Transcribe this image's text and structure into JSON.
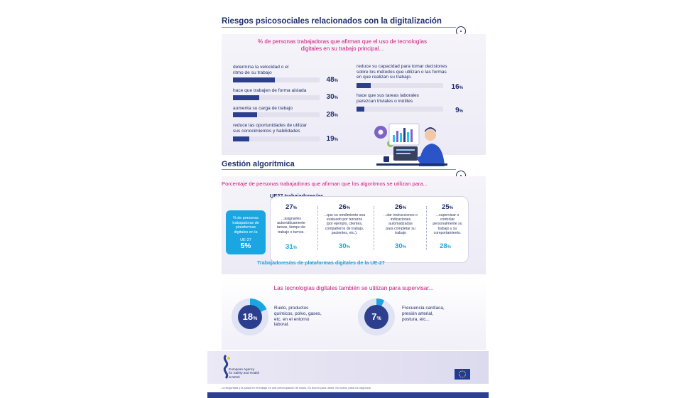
{
  "colors": {
    "navy": "#1f2f6b",
    "bar": "#2b3f8e",
    "accent_pink": "#d1157a",
    "accent_cyan": "#1aa6e0",
    "panel": "#eeecf6"
  },
  "section1": {
    "title": "Riesgos psicosociales relacionados con la digitalización",
    "subtitle_line1": "% de personas  trabajadoras que afirman que el uso de tecnologías",
    "subtitle_line2": "digitales en su trabajo principal...",
    "items": [
      {
        "label_line1": "determina la velocidad o el",
        "label_line2": "ritmo de su trabajo",
        "label_line3": "",
        "value": 48,
        "unit": "%"
      },
      {
        "label_line1": "hace que trabajen de forma aislada",
        "label_line2": "",
        "label_line3": "",
        "value": 30,
        "unit": "%"
      },
      {
        "label_line1": "aumenta su carga de trabajo",
        "label_line2": "",
        "label_line3": "",
        "value": 28,
        "unit": "%"
      },
      {
        "label_line1": "reduce las oportunidades de utilizar",
        "label_line2": "sus conocimientos y habilidades",
        "label_line3": "",
        "value": 19,
        "unit": "%"
      },
      {
        "label_line1": "reduce su capacidad para tomar decisiones",
        "label_line2": "sobre los métodos que utilizan o las formas",
        "label_line3": "en que realizan su trabajo.",
        "value": 16,
        "unit": "%"
      },
      {
        "label_line1": "hace que sus tareas laborales",
        "label_line2": "parezcan triviales o inútiles",
        "label_line3": "",
        "value": 9,
        "unit": "%"
      }
    ]
  },
  "section2": {
    "title": "Gestión algorítmica",
    "subtitle": "Porcentaje de  personas trabajadoras que afirman que los algoritmos se utilizan para...",
    "eu27_label": "UE27 trabajadores/as",
    "platform_label": "Trabajadores/as de plataformas digitales de la UE-27",
    "callout_line1": "% de personas",
    "callout_line2": "trabajadoras de",
    "callout_line3": "plataformas",
    "callout_line4": "digitales  en la",
    "callout_line5": "UE-27",
    "callout_value": "5%",
    "columns": [
      {
        "eu27": 27,
        "platform": 31,
        "unit": "%",
        "desc_line1": "...asignarles",
        "desc_line2": "automáticamente",
        "desc_line3": "tareas, tiempo de",
        "desc_line4": "trabajo o turnos.",
        "desc_line5": ""
      },
      {
        "eu27": 26,
        "platform": 30,
        "unit": "%",
        "desc_line1": "...que su rendimiento sea",
        "desc_line2": "evaluado por terceros",
        "desc_line3": "(por ejemplo, clientes,",
        "desc_line4": "compañeros de trabajo,",
        "desc_line5": "pacientes, etc.)."
      },
      {
        "eu27": 26,
        "platform": 30,
        "unit": "%",
        "desc_line1": "...dar instrucciones o",
        "desc_line2": "indicaciones",
        "desc_line3": "automatizadas",
        "desc_line4": "para completar su",
        "desc_line5": "trabajo"
      },
      {
        "eu27": 25,
        "platform": 28,
        "unit": "%",
        "desc_line1": "...supervisar o",
        "desc_line2": "controlar",
        "desc_line3": "personalmente su",
        "desc_line4": "trabajo y su",
        "desc_line5": "comportamiento."
      }
    ]
  },
  "section3": {
    "title": "Las tecnologías digitales también se utilizan para supervisar...",
    "items": [
      {
        "value": 18,
        "unit": "%",
        "desc_line1": "Ruido, productos",
        "desc_line2": "químicos, polvo, gases,",
        "desc_line3": "etc. en el entorno",
        "desc_line4": "laboral."
      },
      {
        "value": 7,
        "unit": "%",
        "desc_line1": "Frecuencia cardíaca,",
        "desc_line2": "presión arterial,",
        "desc_line3": "postura, etc...",
        "desc_line4": ""
      }
    ]
  },
  "footer": {
    "agency_line1": "European Agency",
    "agency_line2": "for Safety and Health",
    "agency_line3": "at Work",
    "tagline": "La seguridad y la salud en el trabajo es una preocupación de todos. Es bueno para usted. Es bueno para los negocios."
  },
  "icons": [
    "eu-osha-logo-icon",
    "eu-flag-icon",
    "worker-laptop-illustration-icon",
    "target-icon"
  ]
}
